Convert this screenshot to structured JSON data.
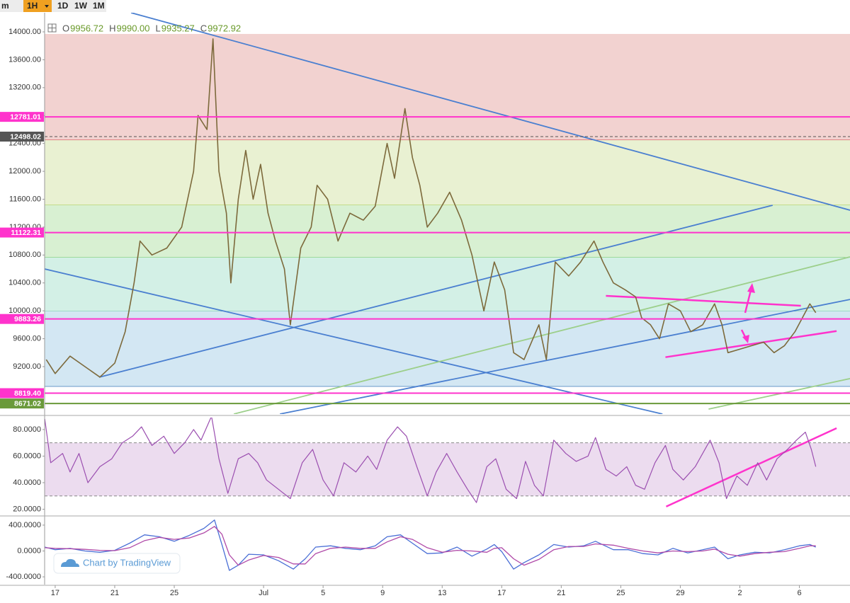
{
  "toolbar": {
    "intervals": [
      "m",
      "1H",
      "1D",
      "1W",
      "1M"
    ],
    "active": 1
  },
  "ohlc": [
    {
      "key": "O",
      "value": "9956.72"
    },
    {
      "key": "H",
      "value": "9990.00"
    },
    {
      "key": "L",
      "value": "9935.27"
    },
    {
      "key": "C",
      "value": "9972.92"
    }
  ],
  "watermark": "Chart by TradingView",
  "chart_data": [
    {
      "type": "line",
      "xlim": [
        -0.71,
        53.4
      ],
      "ylim": [
        8520,
        14274
      ],
      "yticks": [
        {
          "value": 9200,
          "label": "9200.00"
        },
        {
          "value": 9600,
          "label": "9600.00"
        },
        {
          "value": 10000,
          "label": "10000.00"
        },
        {
          "value": 10400,
          "label": "10400.00"
        },
        {
          "value": 10800,
          "label": "10800.00"
        },
        {
          "value": 11200,
          "label": "11200.00"
        },
        {
          "value": 11600,
          "label": "11600.00"
        },
        {
          "value": 12000,
          "label": "12000.00"
        },
        {
          "value": 12400,
          "label": "12400.00"
        },
        {
          "value": 12800,
          "label": "12800.00"
        },
        {
          "value": 13200,
          "label": "13200.00"
        },
        {
          "value": 13600,
          "label": "13600.00"
        },
        {
          "value": 14000,
          "label": "14000.00"
        }
      ],
      "color": "#7d6a3c",
      "x": [
        -0.6,
        0,
        1,
        2,
        3,
        4,
        4.7,
        5.3,
        5.7,
        6.5,
        7.5,
        8.5,
        9.3,
        9.6,
        10.2,
        10.6,
        11,
        11.5,
        11.8,
        12.3,
        12.8,
        13.3,
        13.8,
        14.3,
        14.8,
        15.4,
        15.8,
        16.5,
        17.2,
        17.6,
        18.3,
        19,
        19.8,
        20.7,
        21.5,
        22.3,
        22.8,
        23.5,
        24,
        24.5,
        25,
        25.7,
        26.5,
        27.3,
        28,
        28.4,
        28.8,
        29.5,
        30.2,
        30.8,
        31.5,
        32.5,
        33,
        33.6,
        34.5,
        35.3,
        36.2,
        36.8,
        37.5,
        38.3,
        39,
        39.4,
        40,
        40.6,
        41.2,
        42,
        42.7,
        43.5,
        44.3,
        44.8,
        45.2,
        46,
        46.8,
        47.6,
        48.3,
        49,
        49.7,
        50.2,
        50.7,
        51.1
      ],
      "values": [
        9300,
        9100,
        9350,
        9200,
        9050,
        9250,
        9700,
        10400,
        11000,
        10800,
        10900,
        11200,
        12000,
        12800,
        12600,
        13900,
        12000,
        11400,
        10400,
        11600,
        12300,
        11600,
        12100,
        11400,
        11000,
        10600,
        9800,
        10900,
        11200,
        11800,
        11600,
        11000,
        11400,
        11300,
        11500,
        12400,
        11900,
        12900,
        12200,
        11800,
        11200,
        11400,
        11700,
        11300,
        10800,
        10400,
        10000,
        10700,
        10300,
        9400,
        9300,
        9800,
        9300,
        10700,
        10500,
        10700,
        11000,
        10700,
        10400,
        10300,
        10200,
        9900,
        9800,
        9600,
        10100,
        10000,
        9700,
        9800,
        10100,
        9800,
        9400,
        9450,
        9500,
        9550,
        9400,
        9500,
        9700,
        9900,
        10100,
        9972.92
      ],
      "zones": [
        {
          "from": 13970,
          "to": 12447,
          "color": "#f2d2d0",
          "edge": "#d04040"
        },
        {
          "from": 12447,
          "to": 11514,
          "color": "#e9f1d2",
          "edge": "#9cc63a"
        },
        {
          "from": 11514,
          "to": 10763,
          "color": "#d8f0d2",
          "edge": "#5cbf5c"
        },
        {
          "from": 10763,
          "to": 9992,
          "color": "#d3f0e6",
          "edge": "#5cc0a0"
        },
        {
          "from": 9992,
          "to": 8916,
          "color": "#d3e7f3",
          "edge": "#6a9ac8"
        }
      ],
      "levels": [
        {
          "value": 12781.01,
          "label": "12781.01",
          "color": "#ff33cc"
        },
        {
          "value": 12498.02,
          "label": "12498.02",
          "color": "#555555",
          "dashed": true
        },
        {
          "value": 11122.31,
          "label": "11122.31",
          "color": "#ff33cc"
        },
        {
          "value": 9883.26,
          "label": "9883.26",
          "color": "#ff33cc"
        },
        {
          "value": 8819.4,
          "label": "8819.40",
          "color": "#ff33cc"
        },
        {
          "value": 8671.02,
          "label": "8671.02",
          "color": "#6a9a3a"
        }
      ],
      "trendlines": [
        {
          "x": [
            5.1,
            53.4
          ],
          "y": [
            14274,
            11443
          ],
          "color": "#4a7fd0"
        },
        {
          "x": [
            -0.71,
            40.8
          ],
          "y": [
            10600,
            8520
          ],
          "color": "#4a7fd0"
        },
        {
          "x": [
            2.95,
            48.2
          ],
          "y": [
            9048,
            11514
          ],
          "color": "#4a7fd0"
        },
        {
          "x": [
            15.1,
            53.4
          ],
          "y": [
            8520,
            10163
          ],
          "color": "#4a7fd0"
        },
        {
          "x": [
            12,
            53.4
          ],
          "y": [
            8520,
            10773
          ],
          "color": "#9ccf8a"
        },
        {
          "x": [
            43.9,
            53.4
          ],
          "y": [
            8591,
            9028
          ],
          "color": "#9ccf8a"
        },
        {
          "x": [
            37,
            50.1
          ],
          "y": [
            10215,
            10073
          ],
          "color": "#ff33cc"
        },
        {
          "x": [
            41,
            52.5
          ],
          "y": [
            9335,
            9710
          ],
          "color": "#ff33cc"
        }
      ]
    },
    {
      "type": "line",
      "xlim": [
        -0.71,
        53.4
      ],
      "ylim": [
        16,
        89
      ],
      "yticks": [
        {
          "value": 20,
          "label": "20.0000"
        },
        {
          "value": 40,
          "label": "40.0000"
        },
        {
          "value": 60,
          "label": "60.0000"
        },
        {
          "value": 80,
          "label": "80.0000"
        }
      ],
      "color": "#9b4fb0",
      "band": [
        30,
        70
      ],
      "band_color": "#ecdcef",
      "x": [
        -0.7,
        -0.3,
        0.5,
        1,
        1.6,
        2.2,
        3,
        3.8,
        4.5,
        5.2,
        5.8,
        6.5,
        7.3,
        8,
        8.7,
        9.3,
        9.8,
        10.5,
        11,
        11.6,
        12.3,
        13,
        13.6,
        14.2,
        15,
        15.8,
        16.6,
        17.3,
        18,
        18.7,
        19.4,
        20.2,
        21,
        21.6,
        22.3,
        23,
        23.6,
        24.3,
        25,
        25.6,
        26.3,
        27,
        27.7,
        28.3,
        29,
        29.6,
        30.3,
        31,
        31.6,
        32.2,
        32.8,
        33.5,
        34.3,
        35,
        35.8,
        36.3,
        37,
        37.7,
        38.4,
        39,
        39.6,
        40.3,
        41,
        41.5,
        42.2,
        43,
        44,
        44.6,
        45.1,
        45.8,
        46.5,
        47.2,
        47.8,
        48.5,
        49.2,
        49.8,
        50.4,
        50.8,
        51.1
      ],
      "values": [
        88,
        55,
        62,
        48,
        62,
        40,
        52,
        58,
        70,
        75,
        82,
        68,
        75,
        62,
        70,
        80,
        72,
        90,
        58,
        32,
        58,
        62,
        55,
        42,
        35,
        28,
        55,
        65,
        42,
        30,
        55,
        48,
        60,
        50,
        72,
        82,
        75,
        52,
        30,
        48,
        62,
        48,
        35,
        25,
        52,
        58,
        35,
        28,
        56,
        38,
        30,
        72,
        62,
        56,
        60,
        74,
        50,
        45,
        52,
        38,
        35,
        55,
        68,
        50,
        42,
        52,
        72,
        55,
        28,
        45,
        38,
        55,
        42,
        58,
        65,
        72,
        78,
        65,
        52
      ],
      "trendlines": [
        {
          "x": [
            41.05,
            52.5
          ],
          "y": [
            22,
            81
          ],
          "color": "#ff33cc"
        }
      ]
    },
    {
      "type": "line",
      "xlim": [
        -0.71,
        53.4
      ],
      "ylim": [
        -520,
        520
      ],
      "yticks": [
        {
          "value": -400,
          "label": "-400.0000"
        },
        {
          "value": 0,
          "label": "0.0000"
        },
        {
          "value": 400,
          "label": "400.0000"
        }
      ],
      "xticks": [
        {
          "value": 0,
          "label": "17"
        },
        {
          "value": 4,
          "label": "21"
        },
        {
          "value": 8,
          "label": "25"
        },
        {
          "value": 14,
          "label": "Jul"
        },
        {
          "value": 18,
          "label": "5"
        },
        {
          "value": 22,
          "label": "9"
        },
        {
          "value": 26,
          "label": "13"
        },
        {
          "value": 30,
          "label": "17"
        },
        {
          "value": 34,
          "label": "21"
        },
        {
          "value": 38,
          "label": "25"
        },
        {
          "value": 42,
          "label": "29"
        },
        {
          "value": 46,
          "label": "2"
        },
        {
          "value": 50,
          "label": "6"
        }
      ],
      "x": [
        -0.7,
        0,
        1,
        2,
        3,
        4,
        5,
        6,
        7,
        8,
        9,
        10,
        10.7,
        11.2,
        11.7,
        12.3,
        13,
        14,
        15,
        16,
        16.8,
        17.5,
        18.5,
        19.5,
        20.5,
        21.5,
        22.3,
        23.2,
        24,
        25,
        26,
        27,
        28,
        29,
        29.5,
        30,
        30.8,
        31.5,
        32.5,
        33.5,
        34.5,
        35.5,
        36.3,
        37.5,
        38.5,
        39.5,
        40.5,
        41.5,
        42.5,
        43.5,
        44.3,
        45.2,
        46,
        47,
        48,
        49,
        50,
        50.7,
        51.1
      ],
      "series": [
        {
          "color": "#4a6fd6",
          "values": [
            60,
            20,
            40,
            0,
            -20,
            10,
            120,
            250,
            220,
            150,
            240,
            350,
            480,
            100,
            -300,
            -220,
            -50,
            -60,
            -150,
            -280,
            -120,
            60,
            80,
            40,
            20,
            80,
            220,
            250,
            120,
            -40,
            -30,
            60,
            -80,
            30,
            100,
            -10,
            -280,
            -180,
            -60,
            100,
            60,
            80,
            150,
            20,
            20,
            -40,
            -60,
            40,
            -30,
            20,
            60,
            -120,
            -60,
            -20,
            -30,
            20,
            80,
            100,
            60
          ]
        },
        {
          "color": "#b04aa8",
          "values": [
            50,
            40,
            35,
            25,
            10,
            5,
            50,
            160,
            210,
            180,
            200,
            280,
            380,
            260,
            -60,
            -220,
            -140,
            -70,
            -100,
            -200,
            -200,
            -40,
            40,
            60,
            40,
            40,
            140,
            220,
            180,
            50,
            -20,
            10,
            0,
            -20,
            40,
            50,
            -120,
            -220,
            -130,
            20,
            70,
            70,
            110,
            90,
            40,
            0,
            -30,
            0,
            -10,
            0,
            30,
            -50,
            -80,
            -40,
            -20,
            -10,
            40,
            80,
            80
          ]
        }
      ]
    }
  ]
}
